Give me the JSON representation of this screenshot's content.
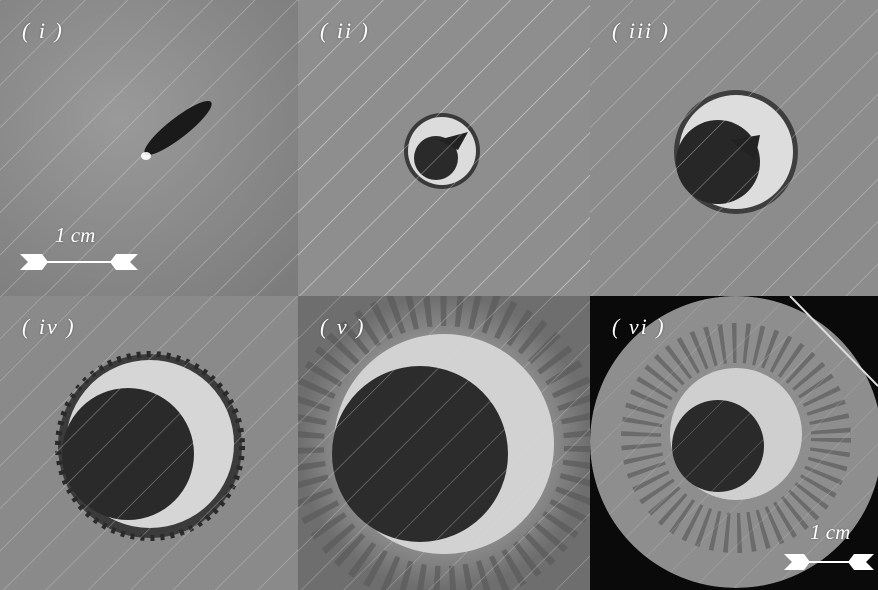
{
  "panels": [
    {
      "id": "i",
      "label": "( i )"
    },
    {
      "id": "ii",
      "label": "( ii )"
    },
    {
      "id": "iii",
      "label": "( iii )"
    },
    {
      "id": "iv",
      "label": "( iv )"
    },
    {
      "id": "v",
      "label": "( v )"
    },
    {
      "id": "vi",
      "label": "( vi )"
    }
  ],
  "scale_bars": [
    {
      "panel": "i",
      "text": "1 cm"
    },
    {
      "panel": "vi",
      "text": "1 cm"
    }
  ]
}
